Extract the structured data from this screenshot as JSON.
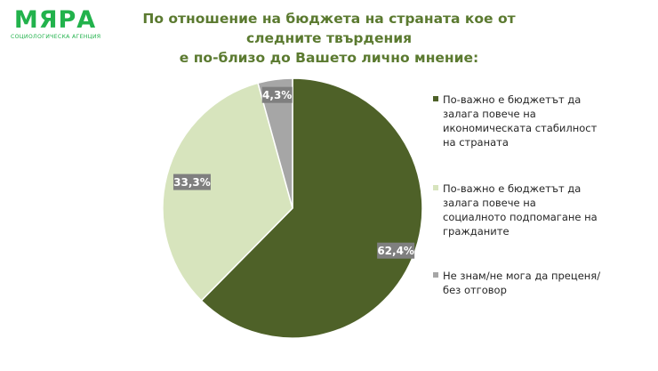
{
  "logo": {
    "name": "МЯРА",
    "subtitle": "СОЦИОЛОГИЧЕСКА АГЕНЦИЯ"
  },
  "title": {
    "line1": "По отношение на бюджета на страната кое от следните твърдения",
    "line2": "е по-близо до Вашето лично мнение:"
  },
  "chart_data": {
    "type": "pie",
    "slices": [
      {
        "label": "По-важно е бюджетът да залага повече на икономическата стабилност на страната",
        "value": 62.4,
        "data_label": "62,4%",
        "color": "#4e6128"
      },
      {
        "label": "По-важно е бюджетът да залага повече на социалното подпомагане на гражданите",
        "value": 33.3,
        "data_label": "33,3%",
        "color": "#d7e4bd"
      },
      {
        "label": "Не знам/не мога да преценя/без отговор",
        "value": 4.3,
        "data_label": "4,3%",
        "color": "#a6a6a6"
      }
    ],
    "start": "12 o'clock",
    "direction": "clockwise",
    "legend_position": "right",
    "data_label_style": {
      "background": "#7f7f7f",
      "color": "#ffffff"
    }
  }
}
